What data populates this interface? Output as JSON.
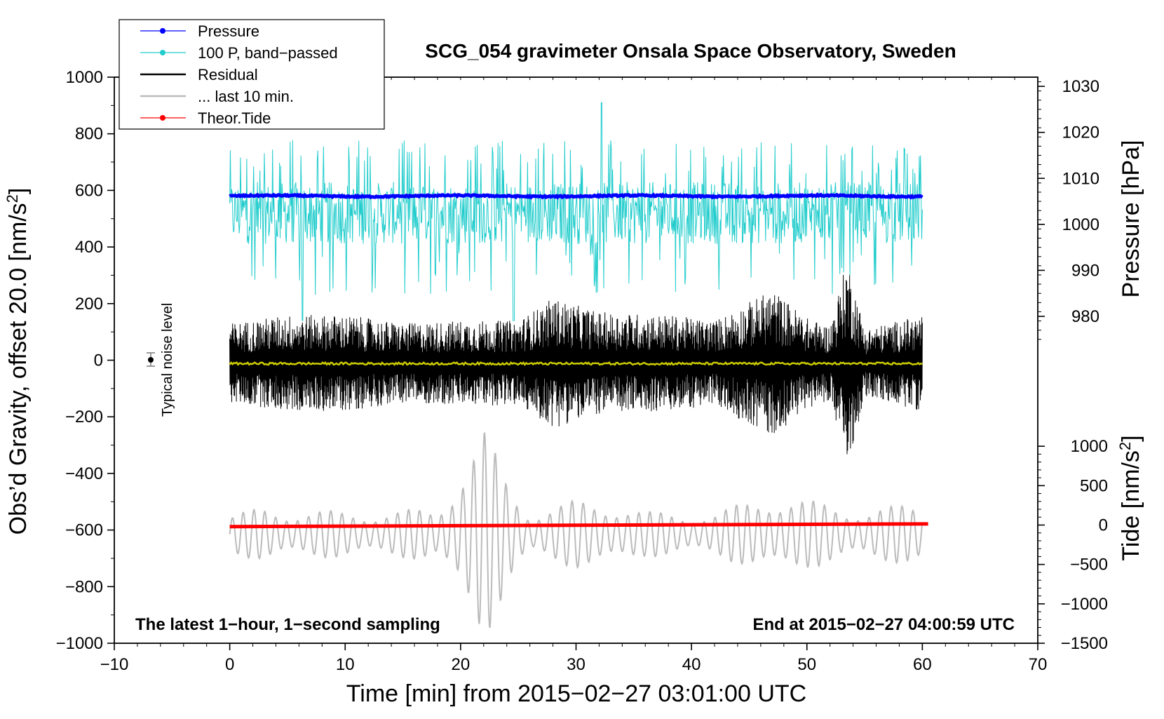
{
  "chart_data": {
    "type": "line",
    "title": "SCG_054 gravimeter Onsala Space Observatory, Sweden",
    "xlabel": "Time [min] from 2015−02−27 03:01:00 UTC",
    "ylabel_left": "Obs’d Gravity, offset 20.0 [nm/s²]",
    "ylabel_left_main": "Obs’d Gravity, offset 20.0 [nm/s",
    "ylabel_left_sup": "2",
    "ylabel_left_tail": "]",
    "ylabel_right_top": "Pressure [hPa]",
    "ylabel_right_bottom_main": "Tide [nm/s",
    "ylabel_right_bottom_sup": "2",
    "ylabel_right_bottom_tail": "]",
    "xlim": [
      -10,
      70
    ],
    "ylim": [
      -1000,
      1000
    ],
    "pressure_axis_range": [
      971,
      1032
    ],
    "tide_axis_range": [
      -1500,
      1500
    ],
    "x_ticks": [
      "−10",
      "0",
      "10",
      "20",
      "30",
      "40",
      "50",
      "60",
      "70"
    ],
    "y_ticks": [
      "1000",
      "800",
      "600",
      "400",
      "200",
      "0",
      "−200",
      "−400",
      "−600",
      "−800",
      "−1000"
    ],
    "pressure_ticks": [
      "1030",
      "1020",
      "1010",
      "1000",
      "990",
      "980"
    ],
    "tide_ticks": [
      "1000",
      "500",
      "0",
      "−500",
      "−1000",
      "−1500"
    ],
    "legend": [
      {
        "label": "Pressure",
        "color": "#0000ff",
        "marker": true
      },
      {
        "label": "100 P, band−passed",
        "color": "#22cccc",
        "marker": true
      },
      {
        "label": "Residual",
        "color": "#000000",
        "marker": false
      },
      {
        "label": "... last 10 min.",
        "color": "#bbbbbb",
        "marker": false
      },
      {
        "label": "Theor.Tide",
        "color": "#ff0000",
        "marker": true
      }
    ],
    "noise_label": "Typical noise level",
    "note_left": "The latest 1−hour, 1−second sampling",
    "note_right": "End at 2015−02−27 04:00:59 UTC",
    "series": [
      {
        "name": "Pressure",
        "color": "#0000ff",
        "axis": "pressure",
        "x_range": [
          0,
          60
        ],
        "level_hPa": 1008,
        "approx_plot_value": 580
      },
      {
        "name": "100 P, band−passed",
        "color": "#22cccc",
        "axis": "gravity",
        "x_range": [
          0,
          60
        ],
        "baseline": 580,
        "upper_peak": 910,
        "lower_extreme": 140
      },
      {
        "name": "Residual",
        "color": "#000000",
        "axis": "gravity",
        "x_range": [
          0,
          60
        ],
        "baseline": -10,
        "typical_amplitude": 150,
        "envelope": [
          [
            0,
            140
          ],
          [
            5,
            170
          ],
          [
            10,
            170
          ],
          [
            15,
            140
          ],
          [
            20,
            150
          ],
          [
            25,
            150
          ],
          [
            28,
            230
          ],
          [
            32,
            180
          ],
          [
            38,
            170
          ],
          [
            42,
            150
          ],
          [
            47,
            260
          ],
          [
            50,
            160
          ],
          [
            52,
            130
          ],
          [
            53.5,
            370
          ],
          [
            55,
            120
          ],
          [
            60,
            170
          ]
        ]
      },
      {
        "name": "Smoothed residual",
        "color": "#cccc00",
        "axis": "gravity",
        "x_range": [
          0,
          60
        ],
        "baseline": -12
      },
      {
        "name": "... last 10 min.",
        "color": "#bbbbbb",
        "axis": "gravity",
        "x_range": [
          0,
          60
        ],
        "baseline": -615,
        "envelope": [
          [
            0,
            70
          ],
          [
            3,
            95
          ],
          [
            10,
            80
          ],
          [
            18,
            90
          ],
          [
            20,
            260
          ],
          [
            22,
            380
          ],
          [
            24,
            200
          ],
          [
            26,
            85
          ],
          [
            30,
            120
          ],
          [
            33,
            120
          ],
          [
            36,
            80
          ],
          [
            42,
            75
          ],
          [
            45,
            120
          ],
          [
            47,
            150
          ],
          [
            50,
            120
          ],
          [
            55,
            90
          ],
          [
            60,
            110
          ]
        ]
      },
      {
        "name": "Theor.Tide",
        "color": "#ff0000",
        "axis": "tide",
        "x_range": [
          0,
          60.5
        ],
        "start_nm_s2": -20,
        "end_nm_s2": 15
      }
    ],
    "noise_bar": {
      "x": -7,
      "value": 0,
      "error": 20
    }
  }
}
